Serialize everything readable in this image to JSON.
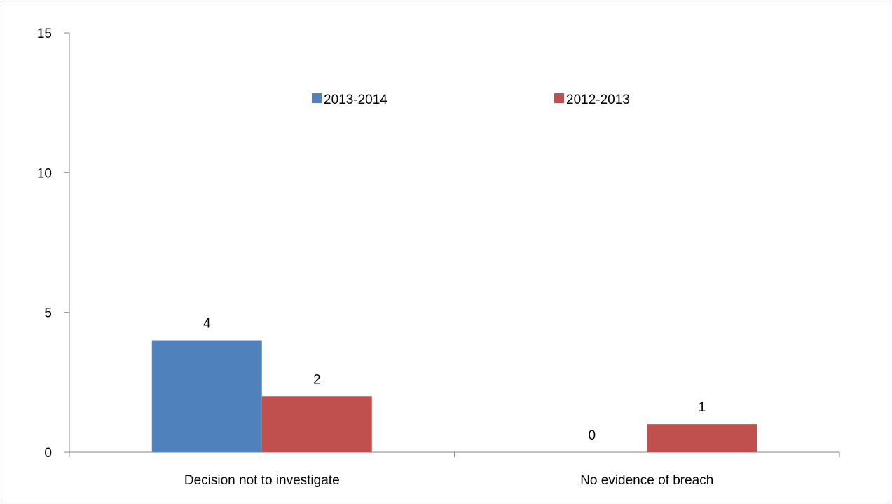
{
  "chart_data": {
    "type": "bar",
    "categories": [
      "Decision not to investigate",
      "No evidence of breach"
    ],
    "series": [
      {
        "name": "2013-2014",
        "values": [
          4,
          0
        ],
        "color": "#4F81BD"
      },
      {
        "name": "2012-2013",
        "values": [
          2,
          1
        ],
        "color": "#C0504D"
      }
    ],
    "ylim": [
      0,
      15
    ],
    "yticks": [
      0,
      5,
      10,
      15
    ],
    "data_labels": true,
    "grid": false,
    "legend_position": "top"
  }
}
